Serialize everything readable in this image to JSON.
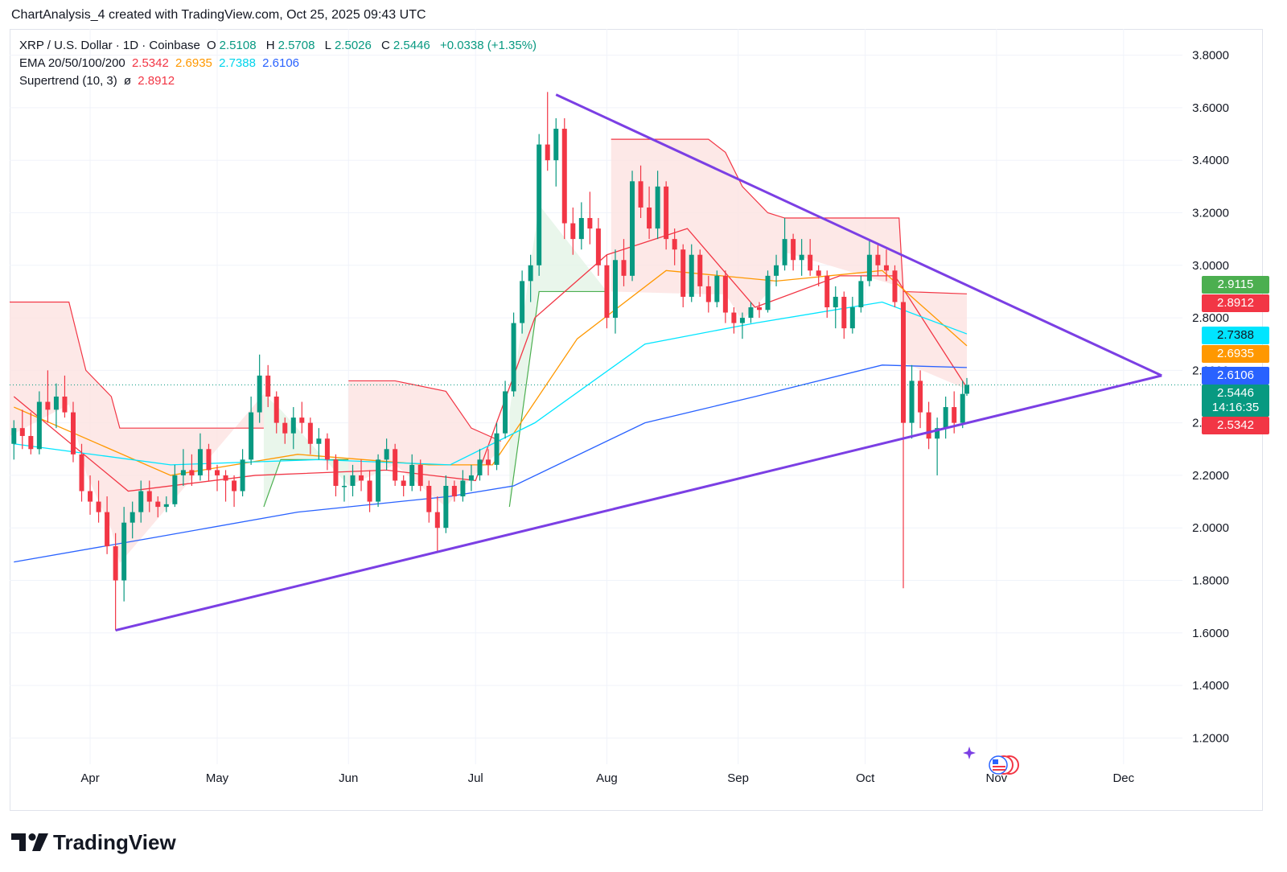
{
  "caption": "ChartAnalysis_4 created with TradingView.com, Oct 25, 2025 09:43 UTC",
  "legend": {
    "symbol": "XRP / U.S. Dollar · 1D · Coinbase",
    "o_label": "O",
    "o_value": "2.5108",
    "h_label": "H",
    "h_value": "2.5708",
    "l_label": "L",
    "l_value": "2.5026",
    "c_label": "C",
    "c_value": "2.5446",
    "change": "+0.0338 (+1.35%)",
    "ema_label": "EMA 20/50/100/200",
    "ema20": "2.5342",
    "ema50": "2.6935",
    "ema100": "2.7388",
    "ema200": "2.6106",
    "supertrend_label": "Supertrend (10, 3)",
    "supertrend_icon": "ø",
    "supertrend_value": "2.8912"
  },
  "badges": {
    "st_up": "2.9115",
    "st_down": "2.8912",
    "ema100": "2.7388",
    "ema50": "2.6935",
    "ema200": "2.6106",
    "price": "2.5446",
    "countdown": "14:16:35",
    "ema20": "2.5342"
  },
  "colors": {
    "up": "#089981",
    "down": "#f23645",
    "ema20": "#f23645",
    "ema50": "#ff9800",
    "ema100": "#00e5ff",
    "ema200": "#2962ff",
    "trendline": "#7b3fe4",
    "st_down_fill": "#fde2e1",
    "st_up_fill": "#e3f4e6"
  },
  "brand": "TradingView",
  "chart_data": {
    "type": "candlestick",
    "symbol": "XRP/USD",
    "timeframe": "1D",
    "x_axis_labels": [
      "Apr",
      "May",
      "Jun",
      "Jul",
      "Aug",
      "Sep",
      "Oct",
      "Nov",
      "Dec"
    ],
    "y_axis_labels": [
      "1.2000",
      "1.4000",
      "1.6000",
      "1.8000",
      "2.0000",
      "2.2000",
      "2.4000",
      "2.6000",
      "2.8000",
      "3.0000",
      "3.2000",
      "3.4000",
      "3.6000",
      "3.8000"
    ],
    "ylim": [
      1.1,
      3.9
    ],
    "date_range": [
      "2025-03-13",
      "2025-12-13"
    ],
    "candles": [
      [
        "2025-03-14",
        2.32,
        2.41,
        2.26,
        2.38
      ],
      [
        "2025-03-16",
        2.38,
        2.45,
        2.3,
        2.35
      ],
      [
        "2025-03-18",
        2.35,
        2.44,
        2.28,
        2.3
      ],
      [
        "2025-03-20",
        2.3,
        2.52,
        2.28,
        2.48
      ],
      [
        "2025-03-22",
        2.48,
        2.6,
        2.4,
        2.45
      ],
      [
        "2025-03-24",
        2.45,
        2.55,
        2.38,
        2.5
      ],
      [
        "2025-03-26",
        2.5,
        2.58,
        2.42,
        2.44
      ],
      [
        "2025-03-28",
        2.44,
        2.48,
        2.25,
        2.28
      ],
      [
        "2025-03-30",
        2.28,
        2.32,
        2.1,
        2.14
      ],
      [
        "2025-04-01",
        2.14,
        2.2,
        2.05,
        2.1
      ],
      [
        "2025-04-03",
        2.1,
        2.18,
        2.02,
        2.06
      ],
      [
        "2025-04-05",
        2.06,
        2.12,
        1.9,
        1.93
      ],
      [
        "2025-04-07",
        1.93,
        1.98,
        1.61,
        1.8
      ],
      [
        "2025-04-09",
        1.8,
        2.08,
        1.72,
        2.02
      ],
      [
        "2025-04-11",
        2.02,
        2.1,
        1.96,
        2.06
      ],
      [
        "2025-04-13",
        2.06,
        2.18,
        2.02,
        2.14
      ],
      [
        "2025-04-15",
        2.14,
        2.18,
        2.06,
        2.1
      ],
      [
        "2025-04-17",
        2.1,
        2.12,
        2.04,
        2.08
      ],
      [
        "2025-04-19",
        2.08,
        2.12,
        2.06,
        2.09
      ],
      [
        "2025-04-21",
        2.09,
        2.24,
        2.08,
        2.2
      ],
      [
        "2025-04-23",
        2.2,
        2.3,
        2.16,
        2.22
      ],
      [
        "2025-04-25",
        2.22,
        2.28,
        2.16,
        2.2
      ],
      [
        "2025-04-27",
        2.2,
        2.36,
        2.18,
        2.3
      ],
      [
        "2025-04-29",
        2.3,
        2.32,
        2.18,
        2.22
      ],
      [
        "2025-05-01",
        2.22,
        2.24,
        2.14,
        2.2
      ],
      [
        "2025-05-03",
        2.2,
        2.22,
        2.1,
        2.18
      ],
      [
        "2025-05-05",
        2.18,
        2.2,
        2.08,
        2.14
      ],
      [
        "2025-05-07",
        2.14,
        2.3,
        2.12,
        2.26
      ],
      [
        "2025-05-09",
        2.26,
        2.5,
        2.24,
        2.44
      ],
      [
        "2025-05-11",
        2.44,
        2.66,
        2.4,
        2.58
      ],
      [
        "2025-05-13",
        2.58,
        2.62,
        2.46,
        2.5
      ],
      [
        "2025-05-15",
        2.5,
        2.52,
        2.36,
        2.4
      ],
      [
        "2025-05-17",
        2.4,
        2.42,
        2.32,
        2.36
      ],
      [
        "2025-05-19",
        2.36,
        2.46,
        2.3,
        2.42
      ],
      [
        "2025-05-21",
        2.42,
        2.48,
        2.36,
        2.4
      ],
      [
        "2025-05-23",
        2.4,
        2.42,
        2.28,
        2.32
      ],
      [
        "2025-05-25",
        2.32,
        2.38,
        2.26,
        2.34
      ],
      [
        "2025-05-27",
        2.34,
        2.36,
        2.22,
        2.26
      ],
      [
        "2025-05-29",
        2.26,
        2.28,
        2.12,
        2.16
      ],
      [
        "2025-05-31",
        2.16,
        2.2,
        2.1,
        2.16
      ],
      [
        "2025-06-02",
        2.16,
        2.24,
        2.12,
        2.2
      ],
      [
        "2025-06-04",
        2.2,
        2.26,
        2.14,
        2.18
      ],
      [
        "2025-06-06",
        2.18,
        2.22,
        2.06,
        2.1
      ],
      [
        "2025-06-08",
        2.1,
        2.28,
        2.08,
        2.26
      ],
      [
        "2025-06-10",
        2.26,
        2.34,
        2.22,
        2.3
      ],
      [
        "2025-06-12",
        2.3,
        2.32,
        2.16,
        2.18
      ],
      [
        "2025-06-14",
        2.18,
        2.2,
        2.12,
        2.16
      ],
      [
        "2025-06-16",
        2.16,
        2.28,
        2.14,
        2.24
      ],
      [
        "2025-06-18",
        2.24,
        2.26,
        2.14,
        2.16
      ],
      [
        "2025-06-20",
        2.16,
        2.18,
        2.02,
        2.06
      ],
      [
        "2025-06-22",
        2.06,
        2.12,
        1.91,
        2.0
      ],
      [
        "2025-06-24",
        2.0,
        2.2,
        1.98,
        2.16
      ],
      [
        "2025-06-26",
        2.16,
        2.18,
        2.1,
        2.12
      ],
      [
        "2025-06-28",
        2.12,
        2.22,
        2.1,
        2.18
      ],
      [
        "2025-06-30",
        2.18,
        2.24,
        2.14,
        2.2
      ],
      [
        "2025-07-02",
        2.2,
        2.3,
        2.18,
        2.26
      ],
      [
        "2025-07-04",
        2.26,
        2.3,
        2.2,
        2.24
      ],
      [
        "2025-07-06",
        2.24,
        2.4,
        2.22,
        2.36
      ],
      [
        "2025-07-08",
        2.36,
        2.56,
        2.34,
        2.52
      ],
      [
        "2025-07-10",
        2.52,
        2.82,
        2.5,
        2.78
      ],
      [
        "2025-07-12",
        2.78,
        2.98,
        2.74,
        2.94
      ],
      [
        "2025-07-14",
        2.94,
        3.04,
        2.86,
        3.0
      ],
      [
        "2025-07-16",
        3.0,
        3.5,
        2.96,
        3.46
      ],
      [
        "2025-07-18",
        3.46,
        3.66,
        3.36,
        3.4
      ],
      [
        "2025-07-20",
        3.4,
        3.56,
        3.3,
        3.52
      ],
      [
        "2025-07-22",
        3.52,
        3.56,
        3.1,
        3.16
      ],
      [
        "2025-07-24",
        3.16,
        3.22,
        3.04,
        3.1
      ],
      [
        "2025-07-26",
        3.1,
        3.24,
        3.06,
        3.18
      ],
      [
        "2025-07-28",
        3.18,
        3.28,
        3.08,
        3.14
      ],
      [
        "2025-07-30",
        3.14,
        3.18,
        2.96,
        3.0
      ],
      [
        "2025-08-01",
        3.0,
        3.04,
        2.76,
        2.8
      ],
      [
        "2025-08-03",
        2.8,
        3.06,
        2.74,
        3.02
      ],
      [
        "2025-08-05",
        3.02,
        3.1,
        2.92,
        2.96
      ],
      [
        "2025-08-07",
        2.96,
        3.36,
        2.94,
        3.32
      ],
      [
        "2025-08-09",
        3.32,
        3.38,
        3.18,
        3.22
      ],
      [
        "2025-08-11",
        3.22,
        3.3,
        3.1,
        3.14
      ],
      [
        "2025-08-13",
        3.14,
        3.36,
        3.1,
        3.3
      ],
      [
        "2025-08-15",
        3.3,
        3.32,
        3.06,
        3.1
      ],
      [
        "2025-08-17",
        3.1,
        3.14,
        3.0,
        3.06
      ],
      [
        "2025-08-19",
        3.06,
        3.08,
        2.84,
        2.88
      ],
      [
        "2025-08-21",
        2.88,
        3.08,
        2.86,
        3.04
      ],
      [
        "2025-08-23",
        3.04,
        3.06,
        2.88,
        2.92
      ],
      [
        "2025-08-25",
        2.92,
        2.96,
        2.82,
        2.86
      ],
      [
        "2025-08-27",
        2.86,
        2.98,
        2.84,
        2.96
      ],
      [
        "2025-08-29",
        2.96,
        2.98,
        2.78,
        2.82
      ],
      [
        "2025-08-31",
        2.82,
        2.84,
        2.74,
        2.78
      ],
      [
        "2025-09-02",
        2.78,
        2.82,
        2.72,
        2.8
      ],
      [
        "2025-09-04",
        2.8,
        2.86,
        2.78,
        2.84
      ],
      [
        "2025-09-06",
        2.84,
        2.86,
        2.8,
        2.83
      ],
      [
        "2025-09-08",
        2.83,
        2.98,
        2.82,
        2.96
      ],
      [
        "2025-09-10",
        2.96,
        3.04,
        2.92,
        3.0
      ],
      [
        "2025-09-12",
        3.0,
        3.18,
        2.98,
        3.1
      ],
      [
        "2025-09-14",
        3.1,
        3.12,
        2.98,
        3.02
      ],
      [
        "2025-09-16",
        3.02,
        3.1,
        2.96,
        3.04
      ],
      [
        "2025-09-18",
        3.04,
        3.1,
        2.96,
        2.98
      ],
      [
        "2025-09-20",
        2.98,
        3.0,
        2.92,
        2.96
      ],
      [
        "2025-09-22",
        2.96,
        2.98,
        2.8,
        2.84
      ],
      [
        "2025-09-24",
        2.84,
        2.92,
        2.76,
        2.88
      ],
      [
        "2025-09-26",
        2.88,
        2.9,
        2.72,
        2.76
      ],
      [
        "2025-09-28",
        2.76,
        2.88,
        2.74,
        2.84
      ],
      [
        "2025-09-30",
        2.84,
        2.96,
        2.82,
        2.94
      ],
      [
        "2025-10-02",
        2.94,
        3.1,
        2.92,
        3.04
      ],
      [
        "2025-10-04",
        3.04,
        3.08,
        2.96,
        3.0
      ],
      [
        "2025-10-06",
        3.0,
        3.06,
        2.94,
        2.98
      ],
      [
        "2025-10-08",
        2.98,
        3.0,
        2.84,
        2.86
      ],
      [
        "2025-10-10",
        2.86,
        2.9,
        1.77,
        2.4
      ],
      [
        "2025-10-12",
        2.4,
        2.62,
        2.34,
        2.56
      ],
      [
        "2025-10-14",
        2.56,
        2.6,
        2.38,
        2.44
      ],
      [
        "2025-10-16",
        2.44,
        2.48,
        2.3,
        2.34
      ],
      [
        "2025-10-18",
        2.34,
        2.42,
        2.2,
        2.38
      ],
      [
        "2025-10-20",
        2.38,
        2.5,
        2.34,
        2.46
      ],
      [
        "2025-10-22",
        2.46,
        2.52,
        2.36,
        2.4
      ],
      [
        "2025-10-24",
        2.4,
        2.56,
        2.38,
        2.51
      ],
      [
        "2025-10-25",
        2.5108,
        2.5708,
        2.5026,
        2.5446
      ]
    ],
    "ema_series": [
      {
        "name": "EMA 20",
        "points": [
          [
            "2025-03-14",
            2.5
          ],
          [
            "2025-04-10",
            2.14
          ],
          [
            "2025-05-10",
            2.2
          ],
          [
            "2025-06-10",
            2.22
          ],
          [
            "2025-07-01",
            2.18
          ],
          [
            "2025-07-15",
            2.8
          ],
          [
            "2025-08-01",
            3.04
          ],
          [
            "2025-08-20",
            3.14
          ],
          [
            "2025-09-05",
            2.84
          ],
          [
            "2025-09-25",
            2.96
          ],
          [
            "2025-10-08",
            2.96
          ],
          [
            "2025-10-25",
            2.5342
          ]
        ]
      },
      {
        "name": "EMA 50",
        "points": [
          [
            "2025-03-14",
            2.46
          ],
          [
            "2025-04-20",
            2.2
          ],
          [
            "2025-05-20",
            2.28
          ],
          [
            "2025-06-20",
            2.24
          ],
          [
            "2025-07-05",
            2.24
          ],
          [
            "2025-07-25",
            2.72
          ],
          [
            "2025-08-15",
            2.98
          ],
          [
            "2025-09-10",
            2.94
          ],
          [
            "2025-10-05",
            2.98
          ],
          [
            "2025-10-25",
            2.6935
          ]
        ]
      },
      {
        "name": "EMA 100",
        "points": [
          [
            "2025-03-14",
            2.32
          ],
          [
            "2025-04-20",
            2.24
          ],
          [
            "2025-05-25",
            2.26
          ],
          [
            "2025-06-25",
            2.24
          ],
          [
            "2025-07-15",
            2.4
          ],
          [
            "2025-08-10",
            2.7
          ],
          [
            "2025-09-05",
            2.78
          ],
          [
            "2025-10-05",
            2.86
          ],
          [
            "2025-10-25",
            2.7388
          ]
        ]
      },
      {
        "name": "EMA 200",
        "points": [
          [
            "2025-03-14",
            1.87
          ],
          [
            "2025-04-15",
            1.96
          ],
          [
            "2025-05-20",
            2.06
          ],
          [
            "2025-06-25",
            2.12
          ],
          [
            "2025-07-10",
            2.16
          ],
          [
            "2025-08-10",
            2.4
          ],
          [
            "2025-09-05",
            2.5
          ],
          [
            "2025-10-05",
            2.62
          ],
          [
            "2025-10-25",
            2.6106
          ]
        ]
      }
    ],
    "supertrend": {
      "down_segments": [
        [
          [
            "2025-03-13",
            2.86
          ],
          [
            "2025-03-27",
            2.86
          ],
          [
            "2025-03-31",
            2.6
          ],
          [
            "2025-04-06",
            2.5
          ],
          [
            "2025-04-08",
            2.38
          ],
          [
            "2025-05-12",
            2.38
          ]
        ],
        [
          [
            "2025-06-01",
            2.56
          ],
          [
            "2025-06-12",
            2.56
          ],
          [
            "2025-06-24",
            2.52
          ],
          [
            "2025-06-30",
            2.38
          ],
          [
            "2025-07-07",
            2.33
          ]
        ],
        [
          [
            "2025-08-02",
            3.48
          ],
          [
            "2025-08-25",
            3.48
          ],
          [
            "2025-08-29",
            3.43
          ],
          [
            "2025-09-02",
            3.3
          ],
          [
            "2025-09-08",
            3.2
          ],
          [
            "2025-09-12",
            3.18
          ],
          [
            "2025-10-09",
            3.18
          ],
          [
            "2025-10-10",
            2.9
          ],
          [
            "2025-10-25",
            2.8912
          ]
        ]
      ],
      "up_segments": [
        [
          [
            "2025-05-12",
            2.08
          ],
          [
            "2025-05-16",
            2.26
          ],
          [
            "2025-06-01",
            2.26
          ]
        ],
        [
          [
            "2025-07-09",
            2.08
          ],
          [
            "2025-07-16",
            2.9
          ],
          [
            "2025-08-01",
            2.9
          ]
        ]
      ]
    },
    "trendlines": [
      {
        "name": "support",
        "from": [
          "2025-04-07",
          1.61
        ],
        "to": [
          "2025-12-10",
          2.58
        ]
      },
      {
        "name": "resistance",
        "from": [
          "2025-07-20",
          3.65
        ],
        "to": [
          "2025-12-10",
          2.58
        ]
      }
    ]
  }
}
